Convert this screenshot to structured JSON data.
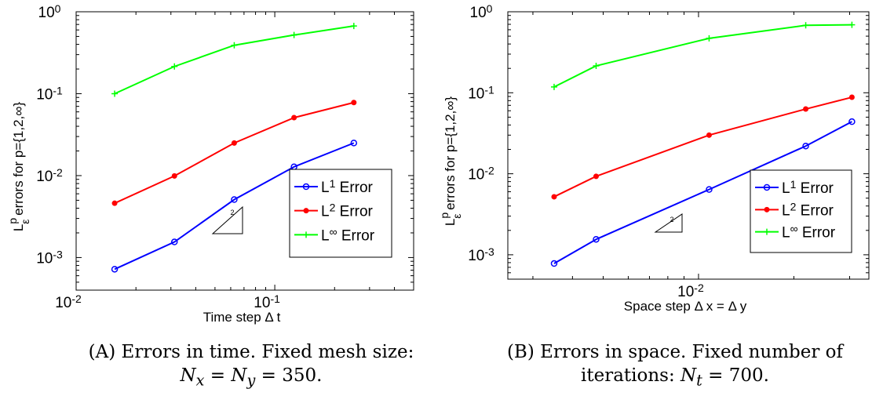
{
  "chart_data": [
    {
      "type": "line",
      "x_scale": "log",
      "y_scale": "log",
      "xlabel": "Time step Δ t",
      "ylabel_main": "L",
      "ylabel_sup": "p",
      "ylabel_sub": "ε",
      "ylabel_rest": " errors for p={1,2,∞}",
      "xlim": [
        0.01,
        0.5
      ],
      "ylim": [
        0.0004,
        1
      ],
      "x_ticks": [
        {
          "value": 0.01,
          "base": "10",
          "exp": "-2"
        },
        {
          "value": 0.1,
          "base": "10",
          "exp": "-1"
        }
      ],
      "y_ticks": [
        {
          "value": 0.001,
          "base": "10",
          "exp": "-3"
        },
        {
          "value": 0.01,
          "base": "10",
          "exp": "-2"
        },
        {
          "value": 0.1,
          "base": "10",
          "exp": "-1"
        },
        {
          "value": 1,
          "base": "10",
          "exp": "0"
        }
      ],
      "x": [
        0.015625,
        0.03125,
        0.0625,
        0.125,
        0.25
      ],
      "series": [
        {
          "name": "L¹ Error",
          "label_base": "L",
          "label_sup": "1",
          "label_rest": " Error",
          "color": "#0000ff",
          "marker": "circle",
          "values": [
            0.00072,
            0.00155,
            0.0051,
            0.0128,
            0.025
          ]
        },
        {
          "name": "L² Error",
          "label_base": "L",
          "label_sup": "2",
          "label_rest": " Error",
          "color": "#ff0000",
          "marker": "dot",
          "values": [
            0.0046,
            0.0099,
            0.025,
            0.051,
            0.078
          ]
        },
        {
          "name": "L∞ Error",
          "label_base": "L",
          "label_sup": "∞",
          "label_rest": " Error",
          "color": "#00ff00",
          "marker": "plus",
          "values": [
            0.1,
            0.215,
            0.39,
            0.52,
            0.67
          ]
        }
      ],
      "slope_triangle": {
        "label": "2"
      },
      "legend_position": "lower-right"
    },
    {
      "type": "line",
      "x_scale": "log",
      "y_scale": "log",
      "xlabel": "Space step Δ x = Δ y",
      "ylabel_main": "L",
      "ylabel_sup": "p",
      "ylabel_sub": "ε",
      "ylabel_rest": " errors for p={1,2,∞}",
      "xlim": [
        0.0025,
        0.0345
      ],
      "ylim": [
        0.0005,
        1
      ],
      "x_ticks": [
        {
          "value": 0.01,
          "base": "10",
          "exp": "-2"
        }
      ],
      "y_ticks": [
        {
          "value": 0.001,
          "base": "10",
          "exp": "-3"
        },
        {
          "value": 0.01,
          "base": "10",
          "exp": "-2"
        },
        {
          "value": 0.1,
          "base": "10",
          "exp": "-1"
        },
        {
          "value": 1,
          "base": "10",
          "exp": "0"
        }
      ],
      "x": [
        0.0035,
        0.00475,
        0.0108,
        0.0218,
        0.0305
      ],
      "series": [
        {
          "name": "L¹ Error",
          "label_base": "L",
          "label_sup": "1",
          "label_rest": " Error",
          "color": "#0000ff",
          "marker": "circle",
          "values": [
            0.00078,
            0.00155,
            0.0064,
            0.022,
            0.044
          ]
        },
        {
          "name": "L² Error",
          "label_base": "L",
          "label_sup": "2",
          "label_rest": " Error",
          "color": "#ff0000",
          "marker": "dot",
          "values": [
            0.0052,
            0.0093,
            0.03,
            0.063,
            0.088
          ]
        },
        {
          "name": "L∞ Error",
          "label_base": "L",
          "label_sup": "∞",
          "label_rest": " Error",
          "color": "#00ff00",
          "marker": "plus",
          "values": [
            0.118,
            0.215,
            0.47,
            0.68,
            0.69
          ]
        }
      ],
      "slope_triangle": {
        "label": "2"
      },
      "legend_position": "lower-right"
    }
  ],
  "captions": [
    {
      "tag": "(A)",
      "line1": " Errors in time. Fixed mesh size:",
      "line2_math": "N",
      "line2_sub1": "x",
      "line2_eq1": " = ",
      "line2_math2": "N",
      "line2_sub2": "y",
      "line2_rest": " = 350."
    },
    {
      "tag": "(B)",
      "line1": " Errors in space. Fixed number of",
      "line2_pre": "iterations: ",
      "line2_math": "N",
      "line2_sub1": "t",
      "line2_rest": " = 700."
    }
  ]
}
